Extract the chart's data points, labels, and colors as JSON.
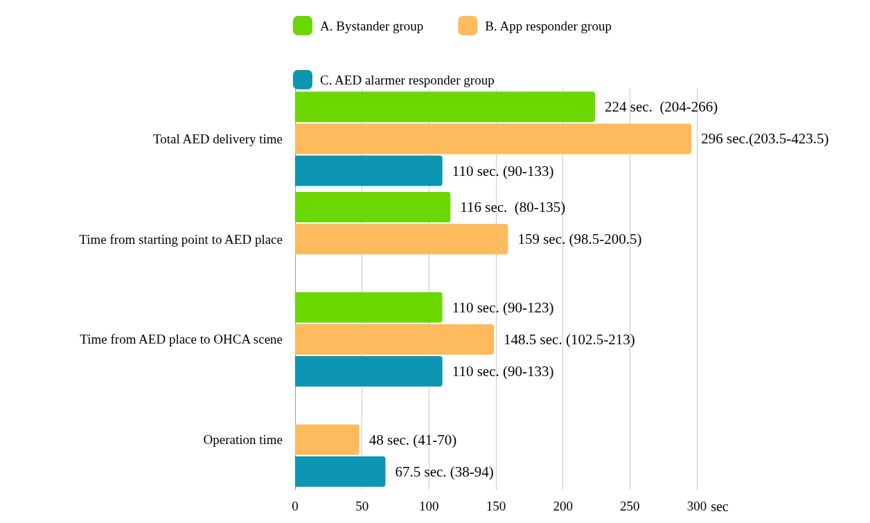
{
  "chart_data": {
    "type": "bar",
    "orientation": "horizontal",
    "xlabel": "sec",
    "categories": [
      "Total AED delivery time",
      "Time from starting point to AED place",
      "Time from AED place to OHCA scene",
      "Operation time"
    ],
    "series": [
      {
        "name": "A. Bystander group",
        "color": "#6ad800",
        "values": [
          224,
          116,
          110,
          null
        ],
        "value_labels": [
          "224 sec.  (204-266)",
          "116 sec.  (80-135)",
          "110 sec. (90-123)",
          null
        ]
      },
      {
        "name": "B. App responder group",
        "color": "#fdbb5d",
        "values": [
          296,
          159,
          148.5,
          48
        ],
        "value_labels": [
          "296 sec.(203.5-423.5)",
          "159 sec. (98.5-200.5)",
          "148.5 sec. (102.5-213)",
          "48 sec. (41-70)"
        ]
      },
      {
        "name": "C. AED alarmer responder group",
        "color": "#0c96b2",
        "values": [
          110,
          null,
          110,
          67.5
        ],
        "value_labels": [
          "110 sec. (90-133)",
          null,
          "110 sec. (90-133)",
          "67.5 sec. (38-94)"
        ]
      }
    ],
    "xlim": [
      0,
      300
    ],
    "xticks": [
      0,
      50,
      100,
      150,
      200,
      250,
      300
    ],
    "grid": "x",
    "legend": "top"
  }
}
